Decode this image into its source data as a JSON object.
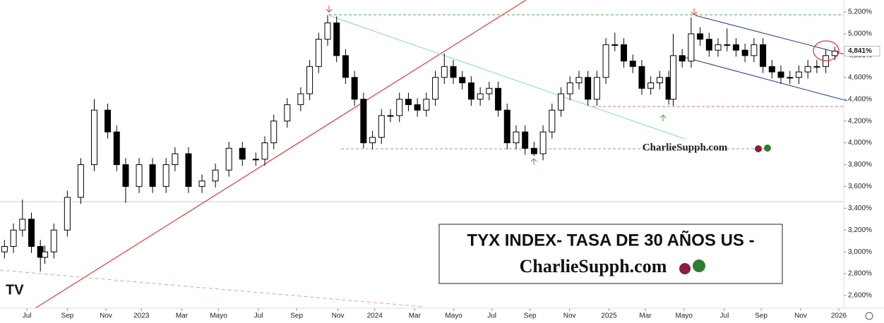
{
  "chart_data": {
    "type": "candlestick",
    "title": "TYX INDEX- TASA DE 30 AÑOS US -",
    "subtitle": "CharlieSupph.com",
    "watermark": "CharlieSupph.com",
    "up_color": "#ffffff",
    "down_color": "#000000",
    "grid": false,
    "x": [
      1,
      3,
      5,
      7,
      9,
      10,
      12,
      15,
      18,
      21,
      24,
      26,
      28,
      31,
      34,
      37,
      39,
      42,
      45,
      48,
      51,
      54,
      57,
      59,
      61,
      64,
      67,
      69,
      71,
      73,
      75,
      77,
      79,
      81,
      83,
      85,
      87,
      89,
      91,
      93,
      95,
      97,
      99,
      101,
      103,
      105,
      107,
      109,
      111,
      113,
      115,
      117,
      119,
      121,
      123,
      125,
      127,
      129,
      131,
      133,
      135,
      137,
      139,
      141,
      143,
      145,
      147,
      149,
      150,
      152,
      154,
      156,
      158,
      160,
      162,
      164,
      166,
      168,
      170,
      172,
      174,
      176,
      178,
      180,
      182,
      184,
      186
    ],
    "open": [
      3000,
      3050,
      3200,
      3300,
      3050,
      2950,
      3000,
      3200,
      3500,
      3800,
      4300,
      4100,
      3800,
      3600,
      3800,
      3600,
      3800,
      3900,
      3600,
      3650,
      3750,
      3950,
      3850,
      3850,
      4000,
      4200,
      4350,
      4450,
      4700,
      4950,
      5100,
      4800,
      4600,
      4400,
      4000,
      4050,
      4250,
      4250,
      4400,
      4350,
      4300,
      4400,
      4600,
      4700,
      4600,
      4550,
      4400,
      4450,
      4500,
      4300,
      4000,
      4100,
      3950,
      3900,
      4100,
      4300,
      4450,
      4550,
      4600,
      4400,
      4600,
      4900,
      4900,
      4750,
      4700,
      4500,
      4550,
      4600,
      4400,
      4800,
      4750,
      5000,
      4950,
      4850,
      4900,
      4900,
      4850,
      4800,
      4900,
      4700,
      4650,
      4600,
      4600,
      4650,
      4700,
      4700,
      4800
    ],
    "high": [
      3110,
      3260,
      3480,
      3360,
      3110,
      3060,
      3260,
      3560,
      3860,
      4400,
      4360,
      4160,
      3860,
      3860,
      3860,
      3860,
      3960,
      3960,
      3710,
      3810,
      4010,
      4010,
      3910,
      4060,
      4260,
      4410,
      4510,
      4760,
      5010,
      5170,
      5160,
      4860,
      4660,
      4460,
      4110,
      4310,
      4310,
      4460,
      4460,
      4410,
      4460,
      4660,
      4820,
      4760,
      4660,
      4610,
      4510,
      4560,
      4560,
      4360,
      4160,
      4160,
      4010,
      4160,
      4360,
      4510,
      4610,
      4660,
      4660,
      4660,
      4960,
      5010,
      4960,
      4810,
      4760,
      4610,
      4660,
      4660,
      5000,
      4860,
      5150,
      5060,
      5010,
      4960,
      5050,
      4960,
      4910,
      4960,
      4960,
      4760,
      4710,
      4660,
      4710,
      4760,
      4760,
      4860,
      4880
    ],
    "low": [
      2940,
      2990,
      3140,
      2990,
      2820,
      2890,
      2940,
      3140,
      3440,
      3740,
      4040,
      3740,
      3450,
      3540,
      3540,
      3540,
      3740,
      3540,
      3540,
      3590,
      3690,
      3790,
      3790,
      3790,
      3940,
      4140,
      4290,
      4390,
      4640,
      4890,
      4740,
      4540,
      4340,
      3950,
      3940,
      3990,
      4190,
      4190,
      4290,
      4240,
      4240,
      4340,
      4540,
      4540,
      4490,
      4340,
      4340,
      4390,
      4240,
      3940,
      3940,
      3890,
      3880,
      3840,
      4040,
      4240,
      4390,
      4490,
      4340,
      4340,
      4540,
      4840,
      4690,
      4640,
      4440,
      4440,
      4490,
      4350,
      4340,
      4690,
      4690,
      4890,
      4790,
      4790,
      4840,
      4790,
      4740,
      4740,
      4640,
      4590,
      4540,
      4540,
      4540,
      4590,
      4640,
      4640,
      4760
    ],
    "close": [
      3050,
      3200,
      3300,
      3050,
      2950,
      3000,
      3200,
      3500,
      3800,
      4300,
      4100,
      3800,
      3600,
      3800,
      3600,
      3800,
      3900,
      3600,
      3650,
      3750,
      3950,
      3850,
      3850,
      4000,
      4200,
      4350,
      4450,
      4700,
      4950,
      5100,
      4800,
      4600,
      4400,
      4000,
      4050,
      4250,
      4250,
      4400,
      4350,
      4300,
      4400,
      4600,
      4700,
      4600,
      4550,
      4400,
      4450,
      4500,
      4300,
      4000,
      4100,
      3950,
      3900,
      4100,
      4300,
      4450,
      4550,
      4600,
      4400,
      4600,
      4900,
      4900,
      4750,
      4700,
      4500,
      4550,
      4600,
      4400,
      4800,
      4750,
      5000,
      4950,
      4850,
      4900,
      4900,
      4850,
      4800,
      4900,
      4700,
      4650,
      4600,
      4600,
      4650,
      4700,
      4700,
      4800,
      4841
    ],
    "last_price": {
      "value": 4841,
      "label": "4,841%"
    },
    "xlim": [
      0,
      188
    ],
    "xticks": [
      {
        "value": 6.0,
        "label": "Jul"
      },
      {
        "value": 15.0,
        "label": "Sep"
      },
      {
        "value": 23.6,
        "label": "Nov"
      },
      {
        "value": 31.5,
        "label": "2023"
      },
      {
        "value": 40.5,
        "label": "Mar"
      },
      {
        "value": 48.7,
        "label": "Mayo"
      },
      {
        "value": 57.6,
        "label": "Jul"
      },
      {
        "value": 66.1,
        "label": "Sep"
      },
      {
        "value": 75.3,
        "label": "Nov"
      },
      {
        "value": 83.5,
        "label": "2024"
      },
      {
        "value": 92.4,
        "label": "Mar"
      },
      {
        "value": 101.1,
        "label": "Mayo"
      },
      {
        "value": 109.6,
        "label": "Jul"
      },
      {
        "value": 118.1,
        "label": "Sep"
      },
      {
        "value": 126.9,
        "label": "Nov"
      },
      {
        "value": 135.7,
        "label": "2025"
      },
      {
        "value": 143.8,
        "label": "Mar"
      },
      {
        "value": 152.4,
        "label": "Mayo"
      },
      {
        "value": 161.4,
        "label": "Jul"
      },
      {
        "value": 169.6,
        "label": "Sep"
      },
      {
        "value": 178.4,
        "label": "Nov"
      },
      {
        "value": 186.9,
        "label": "2026"
      }
    ],
    "ylim": [
      2600,
      5200
    ],
    "yticks": [
      {
        "value": 2600,
        "label": "2,600%"
      },
      {
        "value": 2800,
        "label": "2,800%"
      },
      {
        "value": 3000,
        "label": "3,000%"
      },
      {
        "value": 3200,
        "label": "3,200%"
      },
      {
        "value": 3400,
        "label": "3,400%"
      },
      {
        "value": 3600,
        "label": "3,600%"
      },
      {
        "value": 3800,
        "label": "3,800%"
      },
      {
        "value": 4000,
        "label": "4,000%"
      },
      {
        "value": 4200,
        "label": "4,200%"
      },
      {
        "value": 4400,
        "label": "4,400%"
      },
      {
        "value": 4600,
        "label": "4,600%"
      },
      {
        "value": 4800,
        "label": "4,800%"
      },
      {
        "value": 5000,
        "label": "5,000%"
      },
      {
        "value": 5200,
        "label": "5,200%"
      }
    ]
  }
}
